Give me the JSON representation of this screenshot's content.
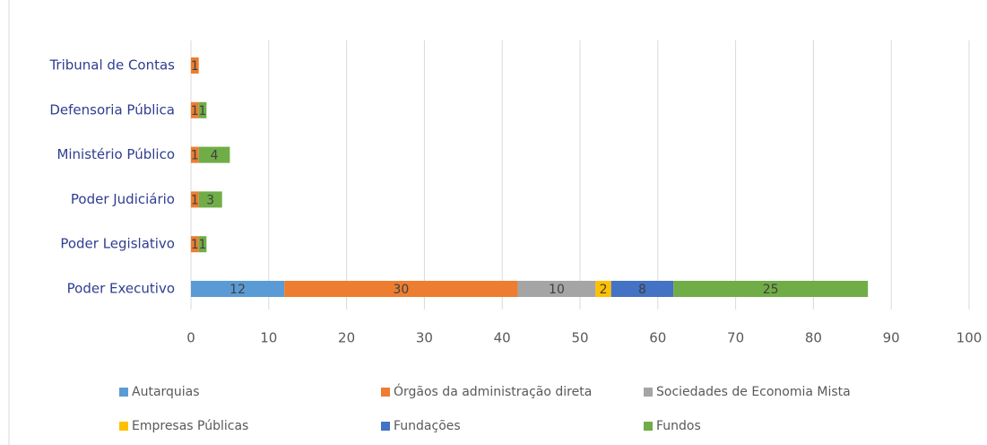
{
  "chart_data": {
    "type": "bar",
    "orientation": "horizontal",
    "stacked": true,
    "categories": [
      "Poder Executivo",
      "Poder Legislativo",
      "Poder Judiciário",
      "Ministério Público",
      "Defensoria Pública",
      "Tribunal de Contas"
    ],
    "series": [
      {
        "name": "Autarquias",
        "color": "#5b9bd5",
        "values": [
          12,
          null,
          null,
          null,
          null,
          null
        ]
      },
      {
        "name": "Órgãos da administração direta",
        "color": "#ed7d31",
        "values": [
          30,
          1,
          1,
          1,
          1,
          1
        ]
      },
      {
        "name": "Sociedades de Economia Mista",
        "color": "#a5a5a5",
        "values": [
          10,
          null,
          null,
          null,
          null,
          null
        ]
      },
      {
        "name": "Empresas Públicas",
        "color": "#ffc000",
        "values": [
          2,
          null,
          null,
          null,
          null,
          null
        ]
      },
      {
        "name": "Fundações",
        "color": "#4472c4",
        "values": [
          8,
          null,
          null,
          null,
          null,
          null
        ]
      },
      {
        "name": "Fundos",
        "color": "#70ad47",
        "values": [
          25,
          1,
          3,
          4,
          1,
          null
        ]
      }
    ],
    "xlim": [
      0,
      100
    ],
    "xticks": [
      0,
      10,
      20,
      30,
      40,
      50,
      60,
      70,
      80,
      90,
      100
    ],
    "grid": true,
    "legend": "bottom"
  }
}
